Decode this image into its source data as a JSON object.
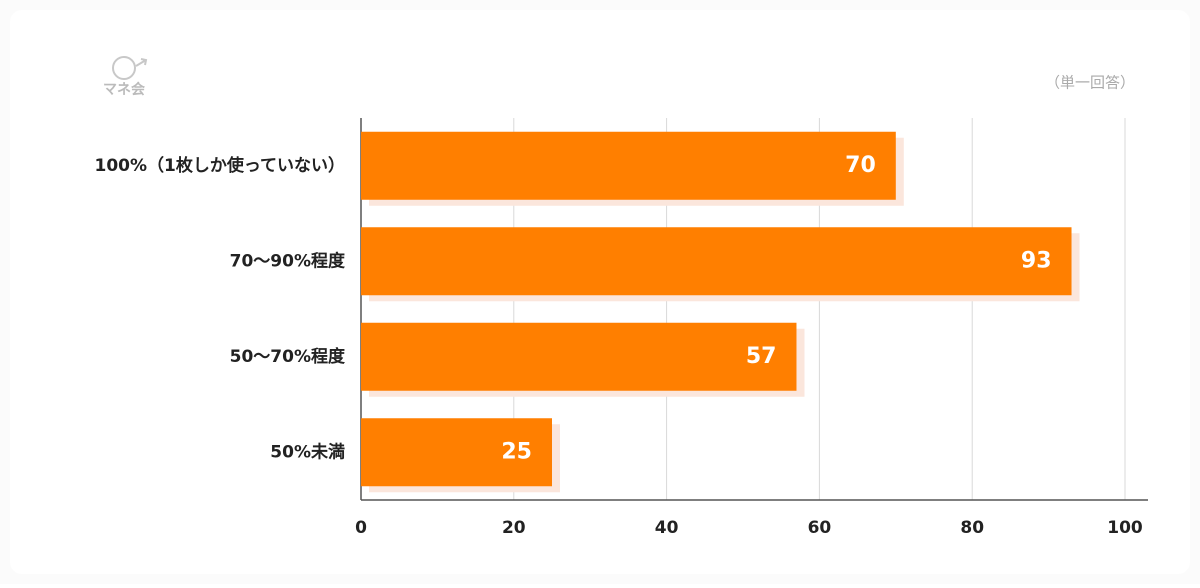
{
  "chart_data": {
    "type": "barh",
    "logo": "マネ会",
    "annotation": "（単一回答）",
    "categories": [
      "100%（1枚しか使っていない）",
      "70〜90%程度",
      "50〜70%程度",
      "50%未満"
    ],
    "values": [
      70,
      93,
      57,
      25
    ],
    "color": "#ff7f00",
    "xlim": [
      0,
      100
    ],
    "xticks": [
      0,
      20,
      40,
      60,
      80,
      100
    ],
    "grid": true
  }
}
